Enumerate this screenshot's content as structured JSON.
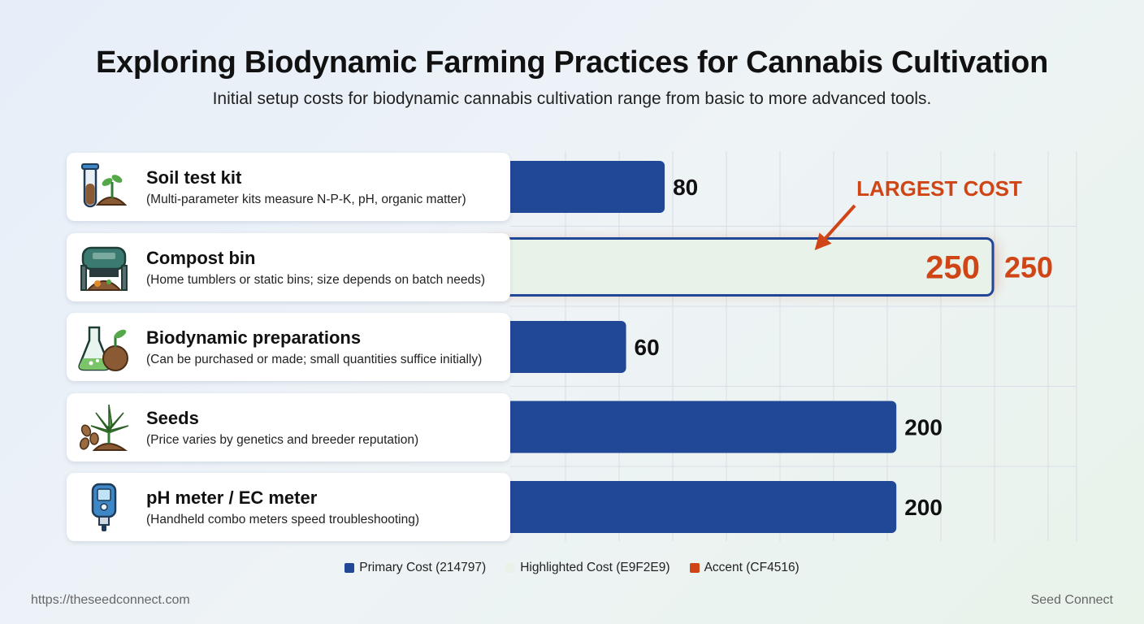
{
  "header": {
    "title": "Exploring Biodynamic Farming Practices for Cannabis Cultivation",
    "subtitle": "Initial setup costs for biodynamic cannabis cultivation range from basic to more advanced tools."
  },
  "chart_data": {
    "type": "bar",
    "orientation": "horizontal",
    "title": "Exploring Biodynamic Farming Practices for Cannabis Cultivation",
    "subtitle": "Initial setup costs for biodynamic cannabis cultivation range from basic to more advanced tools.",
    "categories": [
      "Soil test kit",
      "Compost bin",
      "Biodynamic preparations",
      "Seeds",
      "pH meter / EC meter"
    ],
    "descriptions": [
      "(Multi-parameter kits measure N-P-K, pH, organic matter)",
      "(Home tumblers or static bins; size depends on batch needs)",
      "(Can be purchased or made; small quantities suffice initially)",
      "(Price varies by genetics and breeder reputation)",
      "(Handheld combo meters speed troubleshooting)"
    ],
    "icons": [
      "test-tube-soil-icon",
      "compost-bin-icon",
      "flask-leaf-icon",
      "cannabis-seeds-icon",
      "ph-meter-icon"
    ],
    "values": [
      80,
      250,
      60,
      200,
      200
    ],
    "value_labels": [
      "80",
      "250",
      "60",
      "200",
      "200"
    ],
    "highlight_index": 1,
    "highlight_inner_label": "250",
    "annotation": "LARGEST COST",
    "xlim": [
      0,
      250
    ],
    "grid": true,
    "legend": [
      {
        "label": "Primary Cost (214797)",
        "color": "#214797"
      },
      {
        "label": "Highlighted Cost (E9F2E9)",
        "color": "#E9F2E9"
      },
      {
        "label": "Accent (CF4516)",
        "color": "#CF4516"
      }
    ],
    "legend_position": "bottom-center"
  },
  "colors": {
    "primary": "#214797",
    "highlight": "#E9F2E9",
    "accent": "#CF4516"
  },
  "footer": {
    "url": "https://theseedconnect.com",
    "brand": "Seed Connect"
  }
}
